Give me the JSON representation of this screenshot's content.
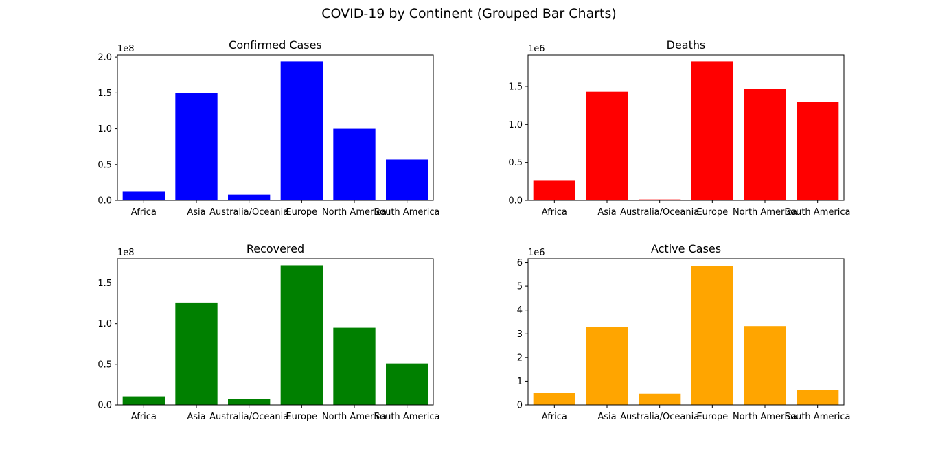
{
  "title": "COVID-19 by Continent (Grouped Bar Charts)",
  "chart_data": [
    {
      "type": "bar",
      "title": "Confirmed Cases",
      "categories": [
        "Africa",
        "Asia",
        "Australia/Oceania",
        "Europe",
        "North America",
        "South America"
      ],
      "values": [
        12000000,
        150000000,
        8000000,
        194000000,
        100000000,
        57000000
      ],
      "color": "#0000ff",
      "scale_label": "1e8",
      "scale": 100000000,
      "ylim": [
        0,
        203000000
      ],
      "yticks": [
        0,
        50000000,
        100000000,
        150000000,
        200000000
      ],
      "ytick_labels": [
        "0.0",
        "0.5",
        "1.0",
        "1.5",
        "2.0"
      ],
      "xlabel": "",
      "ylabel": ""
    },
    {
      "type": "bar",
      "title": "Deaths",
      "categories": [
        "Africa",
        "Asia",
        "Australia/Oceania",
        "Europe",
        "North America",
        "South America"
      ],
      "values": [
        258000,
        1430000,
        12000,
        1830000,
        1470000,
        1300000
      ],
      "color": "#ff0000",
      "scale_label": "1e6",
      "scale": 1000000,
      "ylim": [
        0,
        1915000
      ],
      "yticks": [
        0,
        500000,
        1000000,
        1500000
      ],
      "ytick_labels": [
        "0.0",
        "0.5",
        "1.0",
        "1.5"
      ],
      "xlabel": "",
      "ylabel": ""
    },
    {
      "type": "bar",
      "title": "Recovered",
      "categories": [
        "Africa",
        "Asia",
        "Australia/Oceania",
        "Europe",
        "North America",
        "South America"
      ],
      "values": [
        10500000,
        126000000,
        7500000,
        172000000,
        95000000,
        51000000
      ],
      "color": "#008000",
      "scale_label": "1e8",
      "scale": 100000000,
      "ylim": [
        0,
        180000000
      ],
      "yticks": [
        0,
        50000000,
        100000000,
        150000000
      ],
      "ytick_labels": [
        "0.0",
        "0.5",
        "1.0",
        "1.5"
      ],
      "xlabel": "",
      "ylabel": ""
    },
    {
      "type": "bar",
      "title": "Active Cases",
      "categories": [
        "Africa",
        "Asia",
        "Australia/Oceania",
        "Europe",
        "North America",
        "South America"
      ],
      "values": [
        500000,
        3270000,
        470000,
        5870000,
        3320000,
        620000
      ],
      "color": "#ffa500",
      "scale_label": "1e6",
      "scale": 1000000,
      "ylim": [
        0,
        6160000
      ],
      "yticks": [
        0,
        1000000,
        2000000,
        3000000,
        4000000,
        5000000,
        6000000
      ],
      "ytick_labels": [
        "0",
        "1",
        "2",
        "3",
        "4",
        "5",
        "6"
      ],
      "xlabel": "",
      "ylabel": ""
    }
  ]
}
